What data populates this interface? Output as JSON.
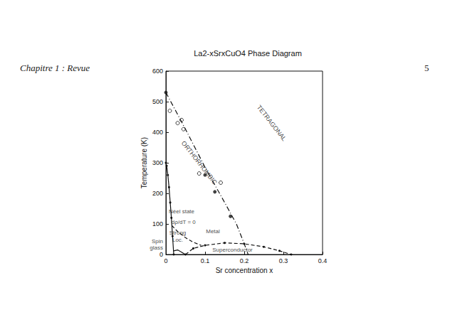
{
  "header": {
    "left": "Chapitre 1 : Revue",
    "page": "5"
  },
  "chart_data": {
    "type": "line",
    "title": "La2-xSrxCuO4 Phase Diagram",
    "x_label": "Sr concentration x",
    "y_label": "Temperature (K)",
    "xlim": [
      0,
      0.4
    ],
    "xticks": [
      0,
      0.1,
      0.2,
      0.3,
      0.4
    ],
    "ylim": [
      0,
      600
    ],
    "yticks": [
      0,
      100,
      200,
      300,
      400,
      500,
      600
    ],
    "grid": false,
    "series": [
      {
        "type": "line",
        "color": "#111111",
        "line_style": "dashdot",
        "marker": "none",
        "x": [
          0,
          0.05,
          0.1,
          0.15,
          0.18,
          0.2,
          0.21
        ],
        "values": [
          530,
          410,
          285,
          170,
          100,
          35,
          0
        ]
      },
      {
        "type": "scatter",
        "color": "#111111",
        "marker": "filled_circle",
        "x": [
          0,
          0.1,
          0.125,
          0.165
        ],
        "values": [
          530,
          260,
          205,
          125
        ]
      },
      {
        "type": "scatter",
        "color": "#111111",
        "marker": "open_circle",
        "x": [
          0.01,
          0.03,
          0.04,
          0.045,
          0.085,
          0.14
        ],
        "values": [
          470,
          430,
          440,
          410,
          265,
          235
        ]
      },
      {
        "type": "line",
        "color": "#111111",
        "line_style": "solid",
        "marker": "filled_circle",
        "x": [
          0,
          0.002,
          0.005,
          0.008,
          0.011,
          0.014,
          0.017,
          0.02
        ],
        "values": [
          300,
          290,
          260,
          220,
          170,
          120,
          60,
          0
        ]
      },
      {
        "type": "line",
        "color": "#111111",
        "line_style": "dashed",
        "marker": "none",
        "x": [
          0.015,
          0.03,
          0.05,
          0.07,
          0.09
        ],
        "values": [
          95,
          75,
          55,
          40,
          30
        ]
      },
      {
        "type": "line",
        "color": "#111111",
        "line_style": "dashed",
        "marker": "filled_circle",
        "x": [
          0.05,
          0.07,
          0.1,
          0.15,
          0.2,
          0.25,
          0.29,
          0.32
        ],
        "values": [
          0,
          20,
          30,
          38,
          35,
          25,
          12,
          0
        ]
      },
      {
        "type": "line",
        "color": "#111111",
        "line_style": "solid",
        "marker": "none",
        "x": [
          0.02,
          0.03,
          0.05
        ],
        "values": [
          12,
          15,
          0
        ]
      }
    ],
    "annotations": [
      {
        "text": "TETRAGONAL",
        "x": 0.27,
        "y": 430
      },
      {
        "text": "ORTHORHOMBIC",
        "x": 0.085,
        "y": 300
      },
      {
        "text": "Néel state",
        "x": 0.04,
        "y": 140
      },
      {
        "text": "dρ/dT = 0",
        "x": 0.045,
        "y": 105
      },
      {
        "text": "Strong",
        "x": 0.03,
        "y": 70
      },
      {
        "text": "Loc.",
        "x": 0.03,
        "y": 48
      },
      {
        "text": "Metal",
        "x": 0.12,
        "y": 75
      },
      {
        "text": "Superconductor",
        "x": 0.17,
        "y": 16
      },
      {
        "text": "Spin",
        "x": 0,
        "y": 42
      },
      {
        "text": "glass",
        "x": 0,
        "y": 22
      }
    ]
  }
}
